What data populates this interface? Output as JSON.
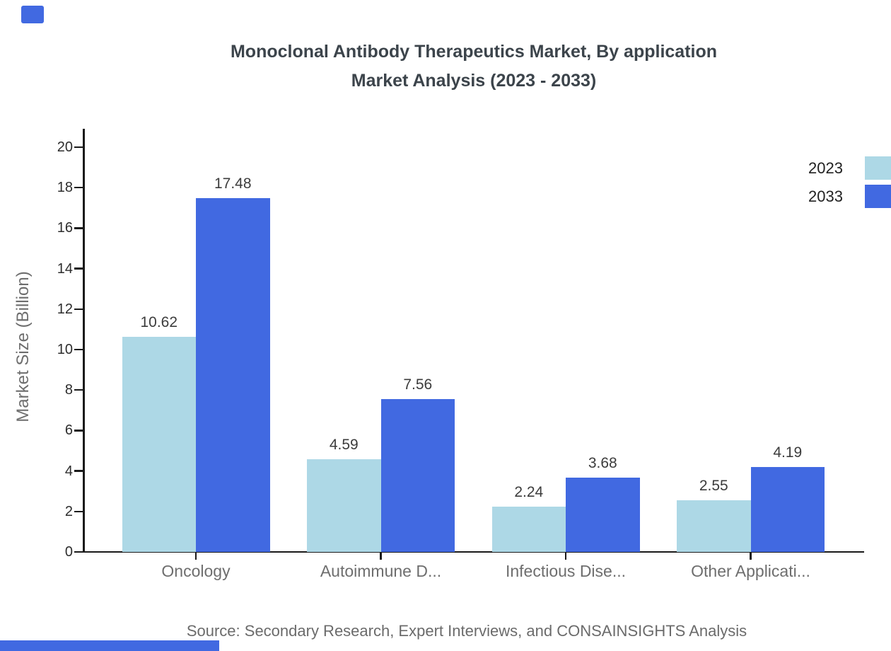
{
  "page": {
    "background": "#ffffff"
  },
  "brand": {
    "accent_color": "#4169E1"
  },
  "chart_data": {
    "type": "bar",
    "title_lines": [
      "Monoclonal Antibody Therapeutics Market, By application",
      "Market Analysis (2023 - 2033)"
    ],
    "categories": [
      "Oncology",
      "Autoimmune D...",
      "Infectious Dise...",
      "Other Applicati..."
    ],
    "series": [
      {
        "name": "2023",
        "color": "#ADD8E6",
        "values": [
          10.62,
          4.59,
          2.24,
          2.55
        ]
      },
      {
        "name": "2033",
        "color": "#4169E1",
        "values": [
          17.48,
          7.56,
          3.68,
          4.19
        ]
      }
    ],
    "ylabel": "Market Size (Billion)",
    "xlabel": "",
    "ylim": [
      0,
      20
    ],
    "ytick_step": 2,
    "yticks": [
      0,
      2,
      4,
      6,
      8,
      10,
      12,
      14,
      16,
      18,
      20
    ],
    "grid": false,
    "legend_position": "top-right",
    "value_label_decimals": 2,
    "source": "Source: Secondary Research, Expert Interviews, and CONSAINSIGHTS Analysis"
  }
}
